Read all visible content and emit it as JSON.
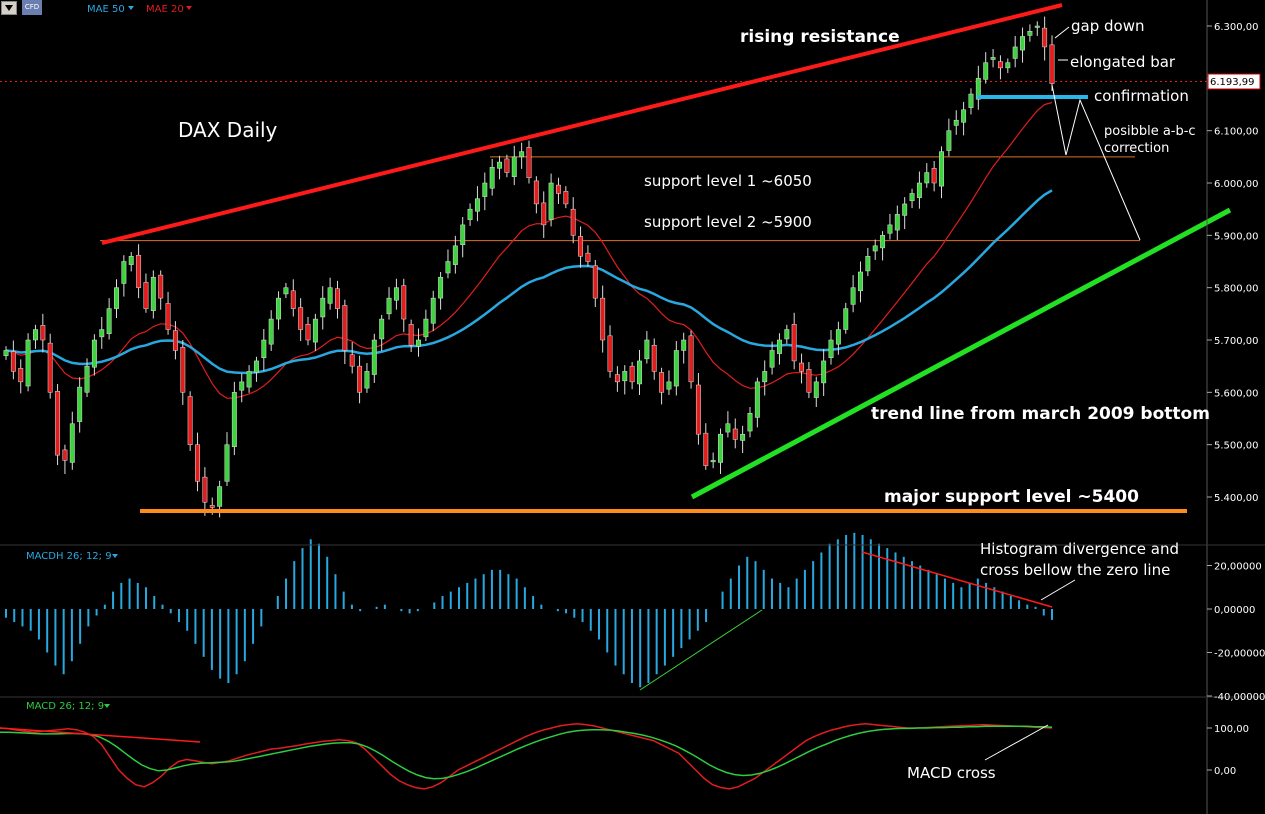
{
  "toolbar": {
    "logo_text": "CFD"
  },
  "legend": {
    "price": [
      {
        "label": "MAE 50",
        "color": "#29a8e0"
      },
      {
        "label": "MAE 20",
        "color": "#e01e1e"
      }
    ],
    "macdh": {
      "label": "MACDH 26; 12; 9",
      "color": "#29a8e0"
    },
    "macd": {
      "label": "MACD 26; 12; 9",
      "color": "#2ecc40"
    }
  },
  "colors": {
    "background": "#000000",
    "up_candle": "#3cd33c",
    "down_candle": "#e01e1e",
    "mae50": "#29a8e0",
    "mae20": "#e01e1e",
    "resistance": "#ff1a1a",
    "trend": "#22e022",
    "major_support": "#ff8c1a",
    "support_levels": "#d9722a",
    "confirmation": "#29b6e8",
    "axis_text": "#ffffff"
  },
  "annotations": {
    "title": "DAX Daily",
    "rising_resistance": "rising resistance",
    "gap_down": "gap down",
    "elongated_bar": "elongated bar",
    "confirmation": "confirmation",
    "abc_line1": "posibble a-b-c",
    "abc_line2": "correction",
    "support1": "support level 1 ~6050",
    "support2": "support level 2 ~5900",
    "trend_line": "trend line from march 2009 bottom",
    "major_support": "major support level ~5400",
    "hist_div_line1": "Histogram divergence and",
    "hist_div_line2": "cross bellow the zero line",
    "macd_cross": "MACD cross"
  },
  "chart_data": [
    {
      "type": "candlestick",
      "title": "DAX Daily",
      "y_axis": {
        "ticks": [
          "6.300,00",
          "6.200,00",
          "6.100,00",
          "6.000,00",
          "5.900,00",
          "5.800,00",
          "5.700,00",
          "5.600,00",
          "5.500,00",
          "5.400,00"
        ],
        "tick_values": [
          6300,
          6200,
          6100,
          6000,
          5900,
          5800,
          5700,
          5600,
          5500,
          5400
        ],
        "range": [
          5320,
          6340
        ]
      },
      "last_price": {
        "label": "6.193,99",
        "value": 6194
      },
      "levels": {
        "major_support": 5380,
        "support_1": 6050,
        "support_2": 5890,
        "confirmation": 6165
      },
      "closes": [
        5680,
        5640,
        5620,
        5700,
        5720,
        5700,
        5600,
        5480,
        5470,
        5540,
        5610,
        5650,
        5700,
        5720,
        5760,
        5800,
        5850,
        5860,
        5800,
        5760,
        5820,
        5780,
        5720,
        5680,
        5600,
        5500,
        5430,
        5390,
        5380,
        5420,
        5500,
        5600,
        5620,
        5640,
        5660,
        5700,
        5740,
        5780,
        5800,
        5760,
        5720,
        5700,
        5740,
        5780,
        5800,
        5760,
        5680,
        5650,
        5600,
        5640,
        5700,
        5740,
        5780,
        5800,
        5740,
        5690,
        5700,
        5740,
        5780,
        5820,
        5850,
        5880,
        5920,
        5950,
        5970,
        6000,
        6030,
        6040,
        6020,
        6050,
        6060,
        6010,
        5960,
        5920,
        6000,
        5980,
        5960,
        5900,
        5860,
        5850,
        5780,
        5700,
        5640,
        5620,
        5640,
        5620,
        5660,
        5700,
        5640,
        5600,
        5620,
        5680,
        5700,
        5620,
        5520,
        5460,
        5470,
        5520,
        5540,
        5510,
        5520,
        5560,
        5620,
        5640,
        5680,
        5700,
        5720,
        5660,
        5640,
        5600,
        5620,
        5660,
        5700,
        5720,
        5760,
        5800,
        5830,
        5860,
        5880,
        5900,
        5920,
        5940,
        5960,
        5980,
        6000,
        6020,
        6000,
        6060,
        6100,
        6120,
        6140,
        6170,
        6200,
        6230,
        6240,
        6220,
        6230,
        6260,
        6280,
        6290,
        6300,
        6260,
        6190
      ]
    },
    {
      "type": "bar",
      "title": "MACDH 26; 12; 9",
      "y_axis": {
        "ticks": [
          "20,00000",
          "0,00000",
          "-20,00000",
          "-40,00000"
        ],
        "tick_values": [
          20,
          0,
          -20,
          -40
        ],
        "range": [
          -55,
          45
        ]
      },
      "values": [
        -4,
        -6,
        -8,
        -10,
        -14,
        -20,
        -26,
        -30,
        -24,
        -16,
        -8,
        -3,
        2,
        8,
        12,
        14,
        12,
        10,
        6,
        2,
        -2,
        -6,
        -10,
        -16,
        -22,
        -28,
        -32,
        -34,
        -30,
        -24,
        -16,
        -8,
        0,
        6,
        14,
        22,
        28,
        32,
        30,
        24,
        16,
        8,
        2,
        -1,
        0,
        1,
        2,
        0,
        -1,
        -2,
        -1,
        0,
        3,
        6,
        8,
        10,
        12,
        14,
        16,
        18,
        18,
        16,
        14,
        10,
        6,
        2,
        0,
        -1,
        -2,
        -4,
        -6,
        -10,
        -14,
        -20,
        -26,
        -30,
        -34,
        -36,
        -34,
        -30,
        -26,
        -22,
        -18,
        -14,
        -10,
        -6,
        0,
        8,
        14,
        20,
        24,
        22,
        18,
        14,
        12,
        10,
        14,
        18,
        22,
        26,
        30,
        32,
        34,
        35,
        34,
        32,
        30,
        28,
        26,
        24,
        22,
        20,
        18,
        16,
        14,
        12,
        10,
        12,
        14,
        12,
        10,
        8,
        6,
        4,
        2,
        1,
        -3,
        -5
      ]
    },
    {
      "type": "line",
      "title": "MACD 26; 12; 9",
      "y_axis": {
        "ticks": [
          "100,00",
          "0,00"
        ],
        "tick_values": [
          100,
          0
        ],
        "range": [
          -60,
          130
        ]
      },
      "series": [
        {
          "color": "#e01e1e",
          "values": [
            100,
            98,
            95,
            92,
            90,
            92,
            94,
            96,
            98,
            96,
            90,
            80,
            60,
            30,
            0,
            -20,
            -35,
            -40,
            -30,
            -15,
            5,
            20,
            25,
            22,
            18,
            15,
            18,
            22,
            28,
            35,
            40,
            45,
            50,
            52,
            55,
            58,
            62,
            65,
            68,
            70,
            72,
            70,
            65,
            50,
            30,
            10,
            -10,
            -25,
            -35,
            -42,
            -45,
            -40,
            -30,
            -15,
            0,
            10,
            20,
            30,
            40,
            50,
            60,
            70,
            80,
            88,
            95,
            100,
            105,
            108,
            110,
            108,
            105,
            100,
            95,
            90,
            85,
            80,
            75,
            70,
            60,
            50,
            40,
            20,
            0,
            -20,
            -35,
            -42,
            -45,
            -40,
            -30,
            -20,
            -5,
            10,
            25,
            40,
            55,
            70,
            80,
            88,
            95,
            100,
            105,
            108,
            110,
            108,
            106,
            104,
            102,
            100,
            100,
            101,
            102,
            103,
            104,
            105,
            106,
            107,
            108,
            107,
            106,
            105,
            104,
            103,
            102,
            101,
            100
          ]
        },
        {
          "color": "#2ecc40",
          "values": [
            90,
            90,
            89,
            88,
            87,
            86,
            86,
            86,
            87,
            87,
            86,
            84,
            78,
            68,
            55,
            40,
            25,
            12,
            3,
            -2,
            0,
            5,
            10,
            14,
            16,
            17,
            18,
            19,
            21,
            24,
            28,
            32,
            36,
            40,
            44,
            48,
            52,
            56,
            59,
            62,
            64,
            65,
            65,
            62,
            55,
            45,
            33,
            20,
            8,
            -3,
            -12,
            -18,
            -21,
            -20,
            -16,
            -10,
            -3,
            5,
            14,
            23,
            32,
            41,
            50,
            58,
            66,
            73,
            79,
            85,
            90,
            93,
            95,
            96,
            96,
            95,
            93,
            90,
            87,
            83,
            78,
            72,
            65,
            57,
            47,
            36,
            24,
            12,
            2,
            -6,
            -11,
            -13,
            -12,
            -8,
            -2,
            6,
            15,
            25,
            35,
            45,
            54,
            62,
            70,
            77,
            83,
            88,
            92,
            95,
            97,
            98,
            99,
            99,
            100,
            100,
            101,
            101,
            102,
            102,
            103,
            103,
            104,
            104,
            104,
            104,
            104,
            104,
            103,
            103,
            102
          ]
        }
      ]
    }
  ]
}
